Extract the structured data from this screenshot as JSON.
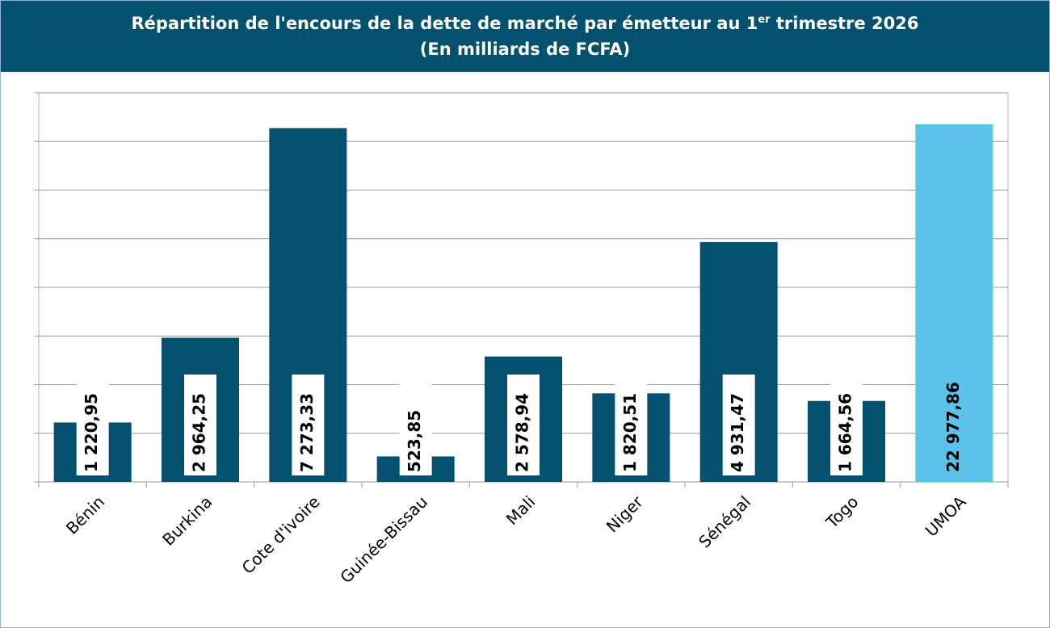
{
  "chart_data": {
    "type": "bar",
    "title": [
      "Répartition de l'encours de la dette de marché par émetteur au 1",
      "er",
      " trimestre 2026"
    ],
    "subtitle": "(En milliards de FCFA)",
    "categories": [
      "Bénin",
      "Burkina",
      "Cote d'ivoire",
      "Guinée-Bissau",
      "Mali",
      "Niger",
      "Sénégal",
      "Togo",
      "UMOA"
    ],
    "series": [
      {
        "color": "#03506f",
        "values": [
          1220.95,
          2964.25,
          7273.33,
          523.85,
          2578.94,
          1820.51,
          4931.47,
          1664.56,
          null
        ],
        "value_labels": [
          "1 220,95",
          "2 964,25",
          "7 273,33",
          "523,85",
          "2 578,94",
          "1 820,51",
          "4 931,47",
          "1 664,56",
          null
        ]
      },
      {
        "color": "#5bc3ea",
        "axis": "y2",
        "values": [
          null,
          null,
          null,
          null,
          null,
          null,
          null,
          null,
          22977.86
        ],
        "value_labels": [
          null,
          null,
          null,
          null,
          null,
          null,
          null,
          null,
          "22 977,86"
        ]
      }
    ],
    "ylim": [
      0,
      8000
    ],
    "yticks": [
      0,
      1000,
      2000,
      3000,
      4000,
      5000,
      6000,
      7000,
      8000
    ],
    "y2lim": [
      0,
      25000
    ],
    "grid": true
  }
}
